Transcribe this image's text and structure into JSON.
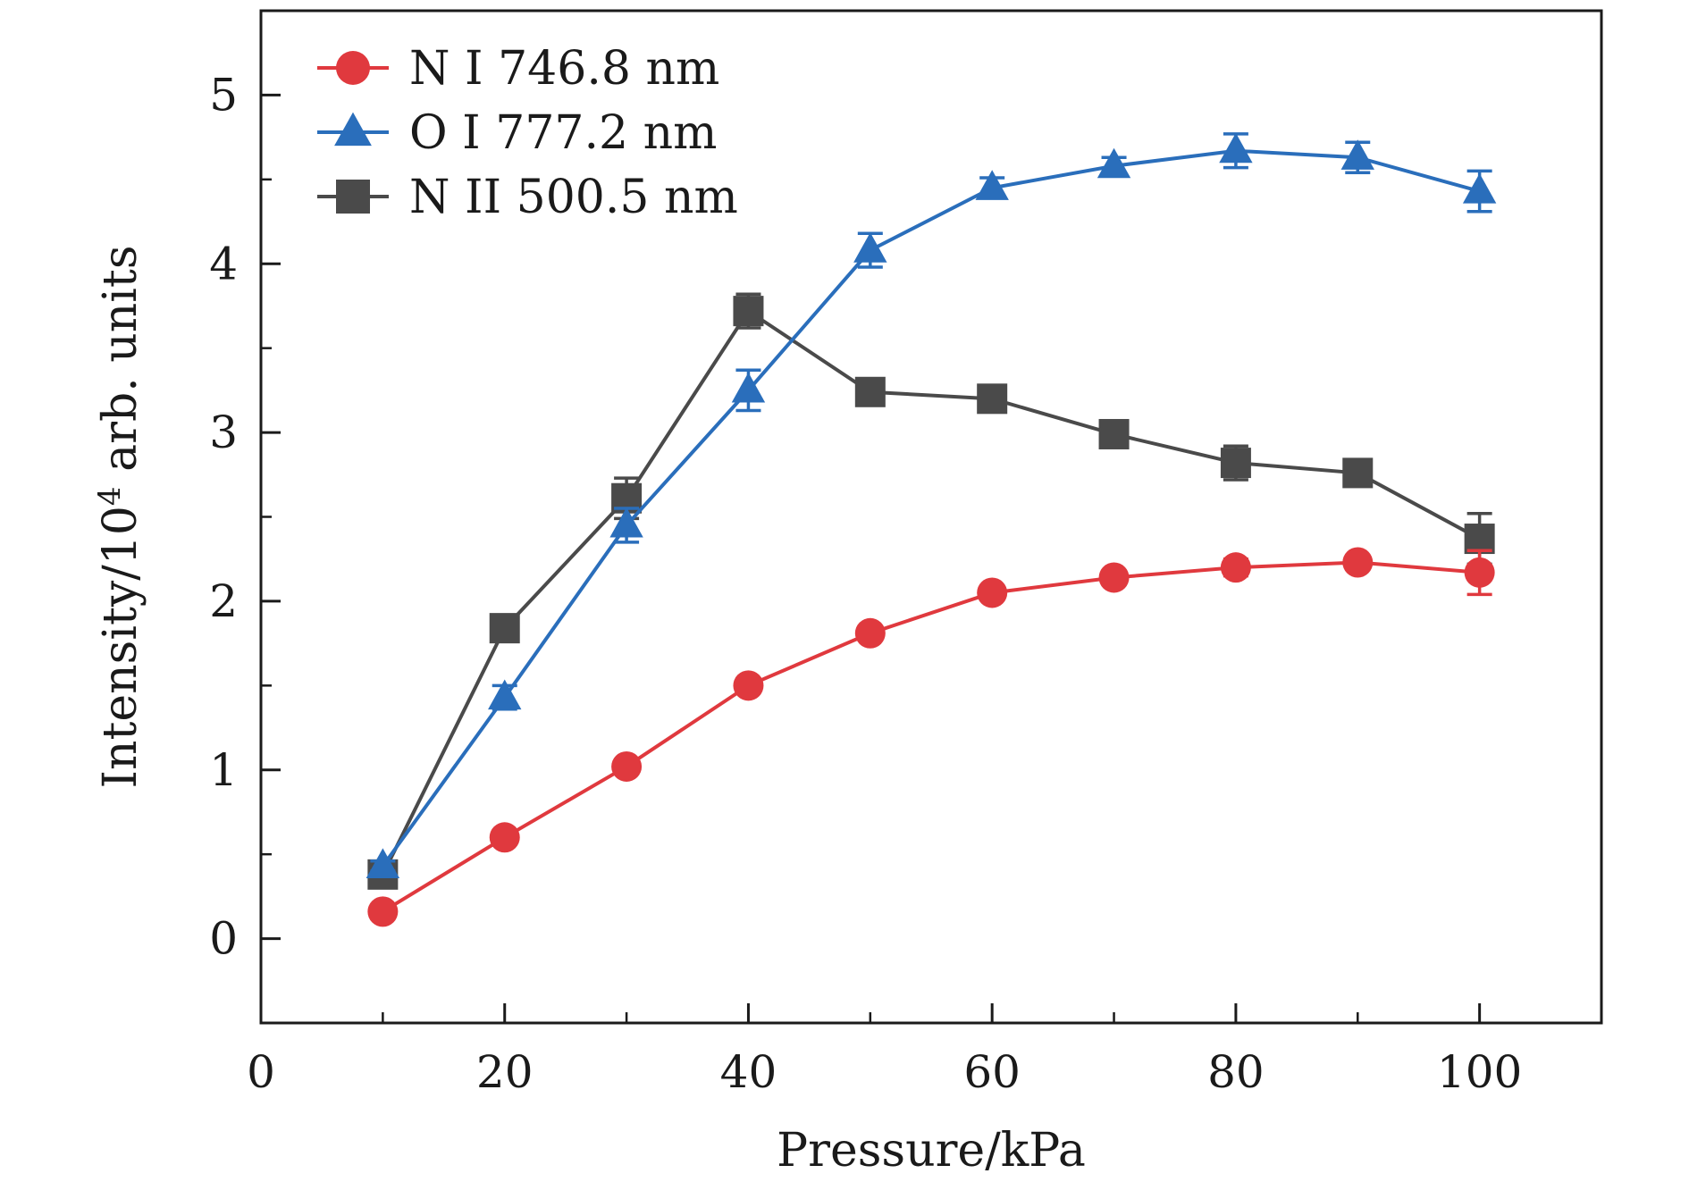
{
  "chart_data": {
    "type": "line",
    "title": "",
    "xlabel": "Pressure/kPa",
    "ylabel": {
      "prefix": "Intensity/10",
      "exponent": "4",
      "suffix": " arb. units"
    },
    "xlim": [
      0,
      110
    ],
    "ylim": [
      -0.5,
      5.5
    ],
    "xticks": [
      "0",
      "20",
      "40",
      "60",
      "80",
      "100"
    ],
    "yticks": [
      "0",
      "1",
      "2",
      "3",
      "4",
      "5"
    ],
    "grid": false,
    "legend_position": "top-left",
    "x": [
      10,
      20,
      30,
      40,
      50,
      60,
      70,
      80,
      90,
      100
    ],
    "series": [
      {
        "name": "N I 746.8 nm",
        "marker": "circle",
        "color": "#e0393e",
        "values": [
          0.16,
          0.6,
          1.02,
          1.5,
          1.81,
          2.05,
          2.14,
          2.2,
          2.23,
          2.17
        ],
        "errors": [
          0.02,
          0.03,
          0.04,
          0.04,
          0.04,
          0.04,
          0.04,
          0.05,
          0.04,
          0.13
        ]
      },
      {
        "name": "O I 777.2 nm",
        "marker": "triangle",
        "color": "#2a6ebb",
        "values": [
          0.43,
          1.43,
          2.45,
          3.25,
          4.08,
          4.45,
          4.58,
          4.67,
          4.63,
          4.43
        ],
        "errors": [
          0.03,
          0.07,
          0.1,
          0.12,
          0.1,
          0.06,
          0.05,
          0.1,
          0.09,
          0.12
        ]
      },
      {
        "name": "N II 500.5 nm",
        "marker": "square",
        "color": "#4a4a4a",
        "values": [
          0.38,
          1.84,
          2.61,
          3.72,
          3.24,
          3.2,
          2.99,
          2.82,
          2.76,
          2.37
        ],
        "errors": [
          0.03,
          0.04,
          0.12,
          0.1,
          0.04,
          0.04,
          0.05,
          0.1,
          0.05,
          0.15
        ]
      }
    ]
  }
}
